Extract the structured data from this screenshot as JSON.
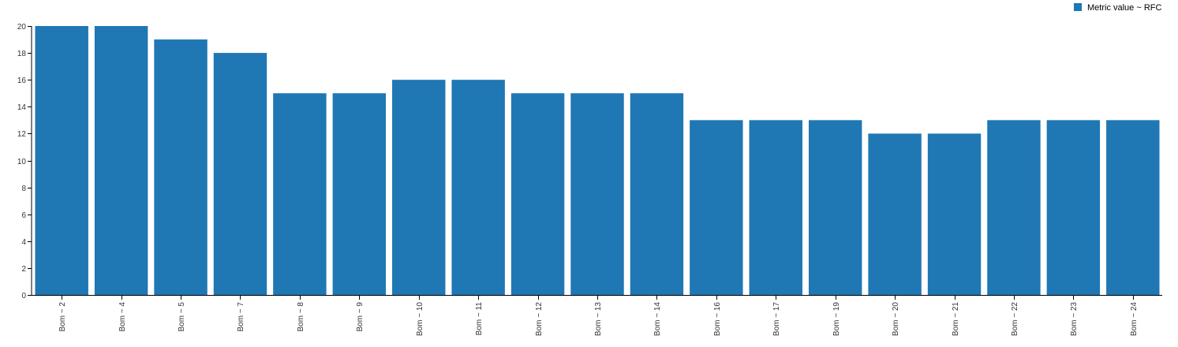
{
  "colors": {
    "bar": "#1f77b4"
  },
  "chart_data": {
    "type": "bar",
    "categories": [
      "Bom ~ 2",
      "Bom ~ 4",
      "Bom ~ 5",
      "Bom ~ 7",
      "Bom ~ 8",
      "Bom ~ 9",
      "Bom ~ 10",
      "Bom ~ 11",
      "Bom ~ 12",
      "Bom ~ 13",
      "Bom ~ 14",
      "Bom ~ 16",
      "Bom ~ 17",
      "Bom ~ 19",
      "Bom ~ 20",
      "Bom ~ 21",
      "Bom ~ 22",
      "Bom ~ 23",
      "Bom ~ 24"
    ],
    "series": [
      {
        "name": "Metric value ~ RFC",
        "values": [
          20,
          20,
          19,
          18,
          15,
          15,
          16,
          16,
          15,
          15,
          15,
          13,
          13,
          13,
          12,
          12,
          13,
          13,
          13
        ]
      }
    ],
    "yticks": [
      "0",
      "2",
      "4",
      "6",
      "8",
      "10",
      "12",
      "14",
      "16",
      "18",
      "20"
    ],
    "ylim": [
      0,
      20
    ],
    "title": "",
    "xlabel": "",
    "ylabel": "",
    "grid": false,
    "legend_position": "top-right"
  }
}
